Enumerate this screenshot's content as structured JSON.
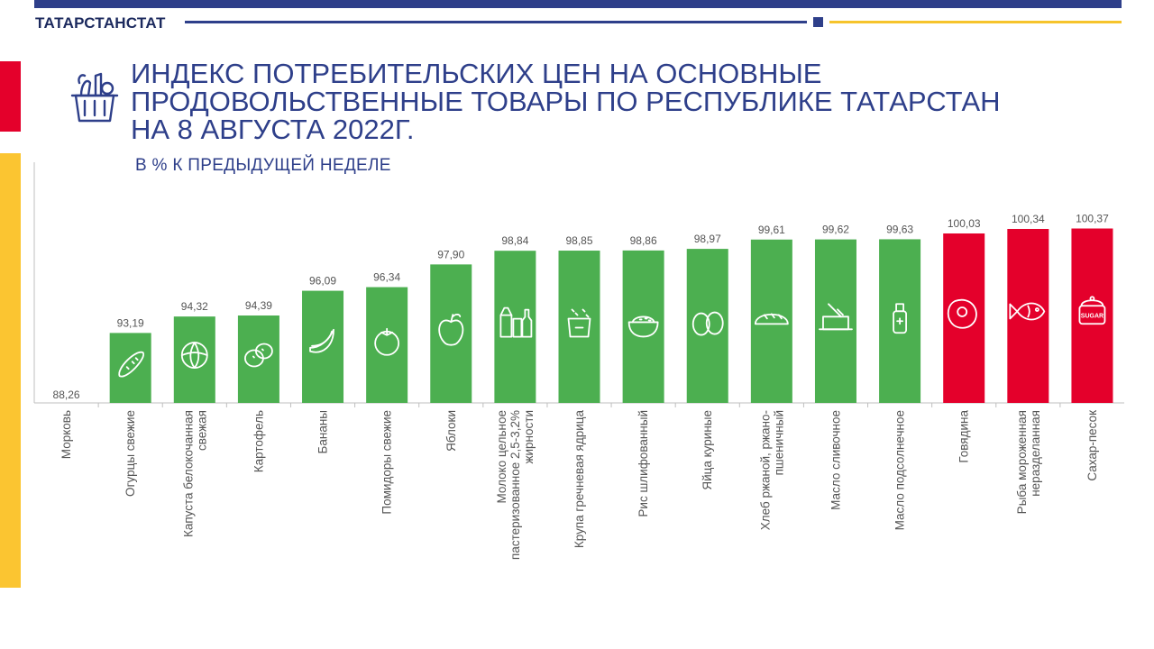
{
  "header": {
    "brand": "ТАТАРСТАНСТАТ",
    "title": "ИНДЕКС ПОТРЕБИТЕЛЬСКИХ ЦЕН НА ОСНОВНЫЕ ПРОДОВОЛЬСТВЕННЫЕ ТОВАРЫ ПО РЕСПУБЛИКЕ ТАТАРСТАН НА 8 АВГУСТА 2022г.",
    "subtitle": "В % К ПРЕДЫДУЩЕЙ НЕДЕЛЕ"
  },
  "colors": {
    "brand_blue": "#2e3f8a",
    "bar_below_100": "#4caf50",
    "bar_above_100": "#e4002b",
    "accent_red": "#e4002b",
    "accent_yellow": "#fbc531"
  },
  "icons": [
    "carrot-icon",
    "cucumber-icon",
    "cabbage-icon",
    "potato-icon",
    "banana-icon",
    "tomato-icon",
    "apple-icon",
    "milk-icon",
    "buckwheat-icon",
    "rice-icon",
    "eggs-icon",
    "bread-icon",
    "butter-icon",
    "oil-bottle-icon",
    "steak-icon",
    "fish-icon",
    "sugar-icon"
  ],
  "chart_data": {
    "type": "bar",
    "title": "ИНДЕКС ПОТРЕБИТЕЛЬСКИХ ЦЕН НА ОСНОВНЫЕ ПРОДОВОЛЬСТВЕННЫЕ ТОВАРЫ ПО РЕСПУБЛИКЕ ТАТАРСТАН НА 8 АВГУСТА 2022г.",
    "subtitle": "В % К ПРЕДЫДУЩЕЙ НЕДЕЛЕ",
    "categories": [
      "Морковь",
      "Огурцы свежие",
      "Капуста белокочанная свежая",
      "Картофель",
      "Бананы",
      "Помидоры свежие",
      "Яблоки",
      "Молоко цельное пастеризованное 2,5-3,2% жирности",
      "Крупа гречневая ядрица",
      "Рис шлифованный",
      "Яйца куриные",
      "Хлеб ржаной, ржано-пшеничный",
      "Масло сливочное",
      "Масло подсолнечное",
      "Говядина",
      "Рыба мороженная неразделанная",
      "Сахар-песок"
    ],
    "values": [
      88.26,
      93.19,
      94.32,
      94.39,
      96.09,
      96.34,
      97.9,
      98.84,
      98.85,
      98.86,
      98.97,
      99.61,
      99.62,
      99.63,
      100.03,
      100.34,
      100.37
    ],
    "value_labels": [
      "88,26",
      "93,19",
      "94,32",
      "94,39",
      "96,09",
      "96,34",
      "97,90",
      "98,84",
      "98,85",
      "98,86",
      "98,97",
      "99,61",
      "99,62",
      "99,63",
      "100,03",
      "100,34",
      "100,37"
    ],
    "color_rule": "red if value > 100, green otherwise",
    "axis_label_lines": [
      [
        "Морковь"
      ],
      [
        "Огурцы свежие"
      ],
      [
        "Капуста белокочанная",
        "свежая"
      ],
      [
        "Картофель"
      ],
      [
        "Бананы"
      ],
      [
        "Помидоры свежие"
      ],
      [
        "Яблоки"
      ],
      [
        "Молоко  цельное",
        "пастеризованное 2,5-3,2%",
        "жирности"
      ],
      [
        "Крупа гречневая ядрица"
      ],
      [
        "Рис шлифованный"
      ],
      [
        "Яйца куриные"
      ],
      [
        "Хлеб ржаной, ржано-",
        "пшеничный"
      ],
      [
        "Масло  сливочное"
      ],
      [
        "Масло  подсолнечное"
      ],
      [
        "Говядина"
      ],
      [
        "Рыба мороженная",
        "неразделанная"
      ],
      [
        "Сахар-песок"
      ]
    ],
    "legend": "none",
    "grid": false
  }
}
